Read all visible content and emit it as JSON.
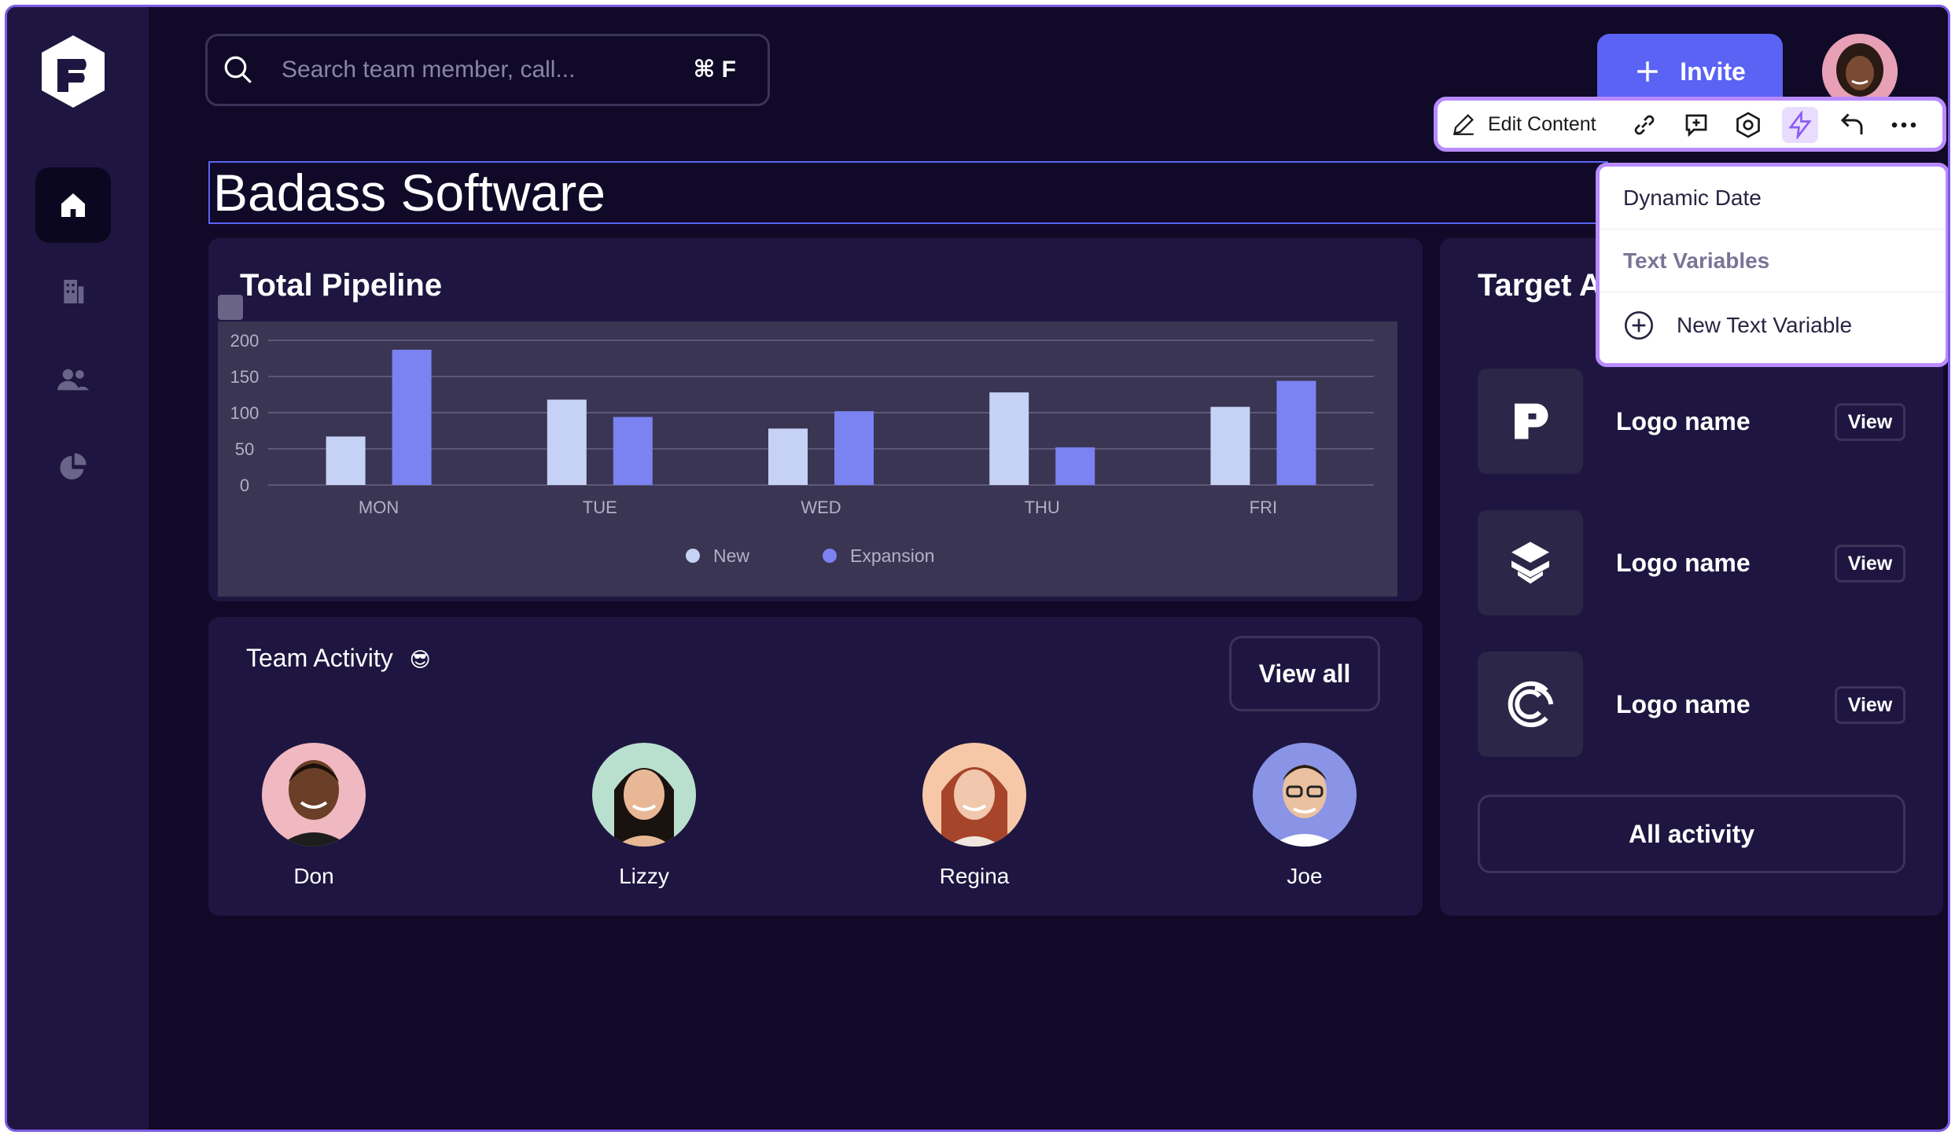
{
  "search": {
    "placeholder": "Search team member, call...",
    "shortcut": "⌘ F"
  },
  "header": {
    "invite_label": "Invite"
  },
  "toolbar": {
    "edit_label": "Edit Content"
  },
  "page": {
    "title": "Badass Software"
  },
  "dropdown": {
    "items": [
      {
        "label": "Dynamic Date"
      },
      {
        "label": "Text Variables"
      },
      {
        "label": "New Text Variable"
      }
    ]
  },
  "pipeline": {
    "title": "Total Pipeline"
  },
  "chart_data": {
    "type": "bar",
    "title": "Total Pipeline",
    "categories": [
      "MON",
      "TUE",
      "WED",
      "THU",
      "FRI"
    ],
    "series": [
      {
        "name": "New",
        "values": [
          67,
          118,
          78,
          128,
          108
        ],
        "color": "#c5d2f5"
      },
      {
        "name": "Expansion",
        "values": [
          187,
          94,
          102,
          52,
          144
        ],
        "color": "#7b82f2"
      }
    ],
    "y_ticks": [
      "200",
      "150",
      "100",
      "50",
      "0"
    ],
    "ylim": [
      0,
      200
    ],
    "grid": true,
    "legend_position": "bottom-center"
  },
  "team": {
    "title": "Team Activity",
    "emoji": "😎",
    "view_all_label": "View all",
    "members": [
      {
        "name": "Don"
      },
      {
        "name": "Lizzy"
      },
      {
        "name": "Regina"
      },
      {
        "name": "Joe"
      }
    ]
  },
  "target": {
    "title": "Target A",
    "logos": [
      {
        "name": "Logo name",
        "view_label": "View"
      },
      {
        "name": "Logo name",
        "view_label": "View"
      },
      {
        "name": "Logo name",
        "view_label": "View"
      }
    ],
    "all_activity_label": "All activity"
  },
  "colors": {
    "accent": "#5b63f5",
    "highlight": "#b98bff",
    "background": "#100a28",
    "card": "#1e1640"
  }
}
